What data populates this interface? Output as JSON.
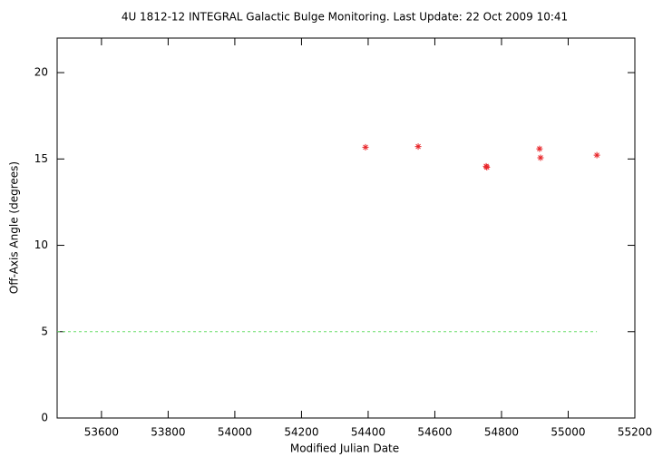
{
  "chart_data": {
    "type": "scatter",
    "title": "4U 1812-12   INTEGRAL Galactic Bulge Monitoring.  Last Update: 22 Oct 2009 10:41",
    "x_label": "Modified Julian Date",
    "y_label": "Off-Axis Angle (degrees)",
    "xlim": [
      53467,
      55200
    ],
    "xticks": [
      53600,
      53800,
      54000,
      54200,
      54400,
      54600,
      54800,
      55000,
      55200
    ],
    "ylim": [
      0,
      22
    ],
    "yticks": [
      0,
      5,
      10,
      15,
      20
    ],
    "series": [
      {
        "type": "scatter",
        "color": "#e8262a",
        "x": [
          54392,
          54550,
          54754,
          54756,
          54914,
          54917,
          55086
        ],
        "values": [
          15.68,
          15.72,
          14.58,
          14.52,
          15.59,
          15.07,
          15.22
        ]
      },
      {
        "type": "line",
        "color": "#66dd66",
        "dashed": true,
        "x": [
          53467,
          55086
        ],
        "values": [
          5,
          5
        ]
      }
    ]
  }
}
